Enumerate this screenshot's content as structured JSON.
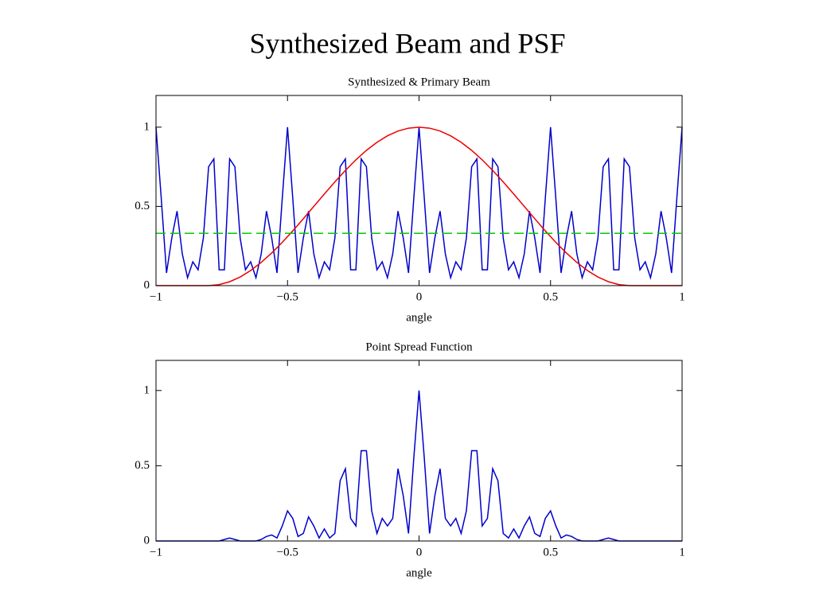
{
  "title": "Synthesized Beam and PSF",
  "chart_data": [
    {
      "type": "line",
      "title": "Synthesized & Primary Beam",
      "xlabel": "angle",
      "xlim": [
        -1,
        1
      ],
      "xticks": [
        {
          "value": -1,
          "label": "−1"
        },
        {
          "value": -0.5,
          "label": "−0.5"
        },
        0,
        0.5,
        1
      ],
      "ylim": [
        0,
        1.2
      ],
      "yticks": [
        0,
        0.5,
        1
      ],
      "series": [
        {
          "color": "#0000cc",
          "style": "solid",
          "x": [
            -1,
            -0.98,
            -0.96,
            -0.94,
            -0.92,
            -0.9,
            -0.88,
            -0.86,
            -0.84,
            -0.82,
            -0.8,
            -0.78,
            -0.76,
            -0.74,
            -0.72,
            -0.7,
            -0.68,
            -0.66,
            -0.64,
            -0.62,
            -0.6,
            -0.58,
            -0.56,
            -0.54,
            -0.52,
            -0.5,
            -0.48,
            -0.46,
            -0.44,
            -0.42,
            -0.4,
            -0.38,
            -0.36,
            -0.34,
            -0.32,
            -0.3,
            -0.28,
            -0.26,
            -0.24,
            -0.22,
            -0.2,
            -0.18,
            -0.16,
            -0.14,
            -0.12,
            -0.1,
            -0.08,
            -0.06,
            -0.04,
            -0.02,
            0,
            0.02,
            0.04,
            0.06,
            0.08,
            0.1,
            0.12,
            0.14,
            0.16,
            0.18,
            0.2,
            0.22,
            0.24,
            0.26,
            0.28,
            0.3,
            0.32,
            0.34,
            0.36,
            0.38,
            0.4,
            0.42,
            0.44,
            0.46,
            0.48,
            0.5,
            0.52,
            0.54,
            0.56,
            0.58,
            0.6,
            0.62,
            0.64,
            0.66,
            0.68,
            0.7,
            0.72,
            0.74,
            0.76,
            0.78,
            0.8,
            0.82,
            0.84,
            0.86,
            0.88,
            0.9,
            0.92,
            0.94,
            0.96,
            0.98,
            1
          ],
          "values": [
            1,
            0.55,
            0.08,
            0.3,
            0.47,
            0.2,
            0.05,
            0.15,
            0.1,
            0.3,
            0.75,
            0.8,
            0.1,
            0.1,
            0.8,
            0.75,
            0.3,
            0.1,
            0.15,
            0.05,
            0.2,
            0.47,
            0.3,
            0.08,
            0.55,
            1,
            0.55,
            0.08,
            0.3,
            0.47,
            0.2,
            0.05,
            0.15,
            0.1,
            0.3,
            0.75,
            0.8,
            0.1,
            0.1,
            0.8,
            0.75,
            0.3,
            0.1,
            0.15,
            0.05,
            0.2,
            0.47,
            0.3,
            0.08,
            0.55,
            1,
            0.55,
            0.08,
            0.3,
            0.47,
            0.2,
            0.05,
            0.15,
            0.1,
            0.3,
            0.75,
            0.8,
            0.1,
            0.1,
            0.8,
            0.75,
            0.3,
            0.1,
            0.15,
            0.05,
            0.2,
            0.47,
            0.3,
            0.08,
            0.55,
            1,
            0.55,
            0.08,
            0.3,
            0.47,
            0.2,
            0.05,
            0.15,
            0.1,
            0.3,
            0.75,
            0.8,
            0.1,
            0.1,
            0.8,
            0.75,
            0.3,
            0.1,
            0.15,
            0.05,
            0.2,
            0.47,
            0.3,
            0.08,
            0.55,
            1
          ]
        },
        {
          "color": "#ee0000",
          "style": "solid",
          "x": [
            -1,
            -0.96,
            -0.92,
            -0.88,
            -0.84,
            -0.8,
            -0.76,
            -0.72,
            -0.68,
            -0.64,
            -0.6,
            -0.56,
            -0.52,
            -0.48,
            -0.44,
            -0.4,
            -0.36,
            -0.32,
            -0.28,
            -0.24,
            -0.2,
            -0.16,
            -0.12,
            -0.08,
            -0.04,
            0,
            0.04,
            0.08,
            0.12,
            0.16,
            0.2,
            0.24,
            0.28,
            0.32,
            0.36,
            0.4,
            0.44,
            0.48,
            0.52,
            0.56,
            0.6,
            0.64,
            0.68,
            0.72,
            0.76,
            0.8,
            0.84,
            0.88,
            0.92,
            0.96,
            1
          ],
          "values": [
            0,
            0,
            0,
            0,
            0,
            0,
            0.0062,
            0.0245,
            0.0545,
            0.0955,
            0.1464,
            0.2061,
            0.273,
            0.3455,
            0.422,
            0.5,
            0.578,
            0.6545,
            0.727,
            0.7939,
            0.8536,
            0.9045,
            0.9455,
            0.9755,
            0.9938,
            1,
            0.9938,
            0.9755,
            0.9455,
            0.9045,
            0.8536,
            0.7939,
            0.727,
            0.6545,
            0.578,
            0.5,
            0.422,
            0.3455,
            0.273,
            0.2061,
            0.1464,
            0.0955,
            0.0545,
            0.0245,
            0.0062,
            0,
            0,
            0,
            0,
            0,
            0
          ]
        },
        {
          "color": "#00cc00",
          "style": "dashed",
          "x": [
            -1,
            1
          ],
          "values": [
            0.33,
            0.33
          ]
        }
      ]
    },
    {
      "type": "line",
      "title": "Point Spread Function",
      "xlabel": "angle",
      "xlim": [
        -1,
        1
      ],
      "xticks": [
        {
          "value": -1,
          "label": "−1"
        },
        {
          "value": -0.5,
          "label": "−0.5"
        },
        0,
        0.5,
        1
      ],
      "ylim": [
        0,
        1.2
      ],
      "yticks": [
        0,
        0.5,
        1
      ],
      "series": [
        {
          "color": "#0000cc",
          "style": "solid",
          "x": [
            -1,
            -0.98,
            -0.96,
            -0.94,
            -0.92,
            -0.9,
            -0.88,
            -0.86,
            -0.84,
            -0.82,
            -0.8,
            -0.78,
            -0.76,
            -0.74,
            -0.72,
            -0.7,
            -0.68,
            -0.66,
            -0.64,
            -0.62,
            -0.6,
            -0.58,
            -0.56,
            -0.54,
            -0.52,
            -0.5,
            -0.48,
            -0.46,
            -0.44,
            -0.42,
            -0.4,
            -0.38,
            -0.36,
            -0.34,
            -0.32,
            -0.3,
            -0.28,
            -0.26,
            -0.24,
            -0.22,
            -0.2,
            -0.18,
            -0.16,
            -0.14,
            -0.12,
            -0.1,
            -0.08,
            -0.06,
            -0.04,
            -0.02,
            0,
            0.02,
            0.04,
            0.06,
            0.08,
            0.1,
            0.12,
            0.14,
            0.16,
            0.18,
            0.2,
            0.22,
            0.24,
            0.26,
            0.28,
            0.3,
            0.32,
            0.34,
            0.36,
            0.38,
            0.4,
            0.42,
            0.44,
            0.46,
            0.48,
            0.5,
            0.52,
            0.54,
            0.56,
            0.58,
            0.6,
            0.62,
            0.64,
            0.66,
            0.68,
            0.7,
            0.72,
            0.74,
            0.76,
            0.78,
            0.8,
            0.82,
            0.84,
            0.86,
            0.88,
            0.9,
            0.92,
            0.94,
            0.96,
            0.98,
            1
          ],
          "values": [
            0,
            0,
            0,
            0,
            0,
            0,
            0,
            0,
            0,
            0,
            0,
            0,
            0,
            0.01,
            0.02,
            0.01,
            0,
            0,
            0,
            0,
            0.01,
            0.03,
            0.04,
            0.02,
            0.1,
            0.2,
            0.15,
            0.03,
            0.05,
            0.16,
            0.1,
            0.02,
            0.08,
            0.02,
            0.05,
            0.4,
            0.48,
            0.15,
            0.1,
            0.6,
            0.6,
            0.2,
            0.05,
            0.15,
            0.1,
            0.15,
            0.48,
            0.3,
            0.05,
            0.55,
            1,
            0.55,
            0.05,
            0.3,
            0.48,
            0.15,
            0.1,
            0.15,
            0.05,
            0.2,
            0.6,
            0.6,
            0.1,
            0.15,
            0.48,
            0.4,
            0.05,
            0.02,
            0.08,
            0.02,
            0.1,
            0.16,
            0.05,
            0.03,
            0.15,
            0.2,
            0.1,
            0.02,
            0.04,
            0.03,
            0.01,
            0,
            0,
            0,
            0,
            0.01,
            0.02,
            0.01,
            0,
            0,
            0,
            0,
            0,
            0,
            0,
            0,
            0,
            0,
            0,
            0,
            0
          ]
        }
      ]
    }
  ]
}
